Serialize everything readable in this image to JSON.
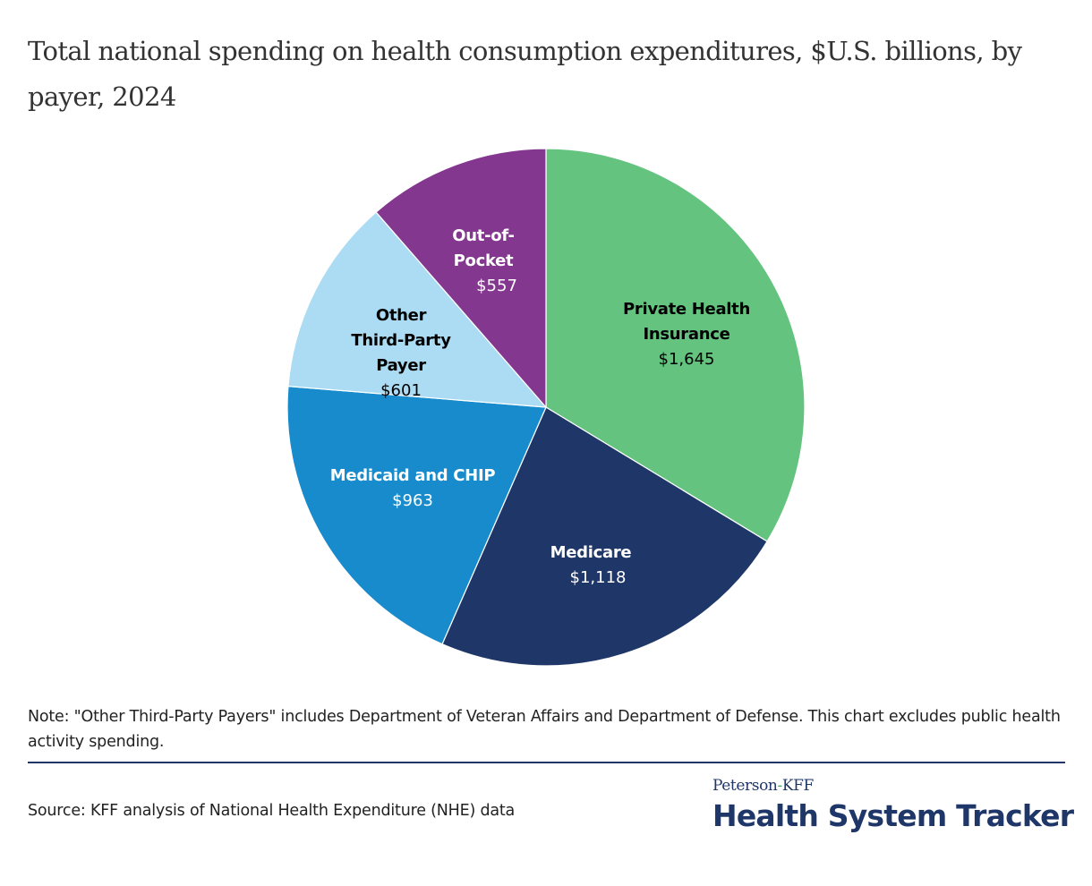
{
  "chart_data": {
    "type": "pie",
    "title": "Total national spending on health consumption expenditures, $U.S. billions, by payer, 2024",
    "unit": "$U.S. billions",
    "start_angle": "12 o'clock, clockwise",
    "slices": [
      {
        "key": "private",
        "label_lines": [
          "Private Health",
          "Insurance"
        ],
        "value": 1645,
        "value_label": "$1,645",
        "color": "#64c37f",
        "text_color": "#000000"
      },
      {
        "key": "medicare",
        "label_lines": [
          "Medicare"
        ],
        "value": 1118,
        "value_label": "$1,118",
        "color": "#1f3668",
        "text_color": "#ffffff"
      },
      {
        "key": "medicaid",
        "label_lines": [
          "Medicaid and CHIP"
        ],
        "value": 963,
        "value_label": "$963",
        "color": "#178bcb",
        "text_color": "#ffffff"
      },
      {
        "key": "other",
        "label_lines": [
          "Other",
          "Third-Party",
          "Payer"
        ],
        "value": 601,
        "value_label": "$601",
        "color": "#abdcf4",
        "text_color": "#000000"
      },
      {
        "key": "oop",
        "label_lines": [
          "Out-of-",
          "Pocket"
        ],
        "value": 557,
        "value_label": "$557",
        "color": "#84378f",
        "text_color": "#ffffff"
      }
    ]
  },
  "note": "Note: \"Other Third-Party Payers\" includes Department of Veteran Affairs and Department of Defense. This chart excludes public health activity spending.",
  "source": "Source: KFF analysis of National Health Expenditure (NHE) data",
  "logo": {
    "top_left": "Peterson",
    "top_hyphen": "-",
    "top_right": "KFF",
    "main": "Health System Tracker"
  }
}
